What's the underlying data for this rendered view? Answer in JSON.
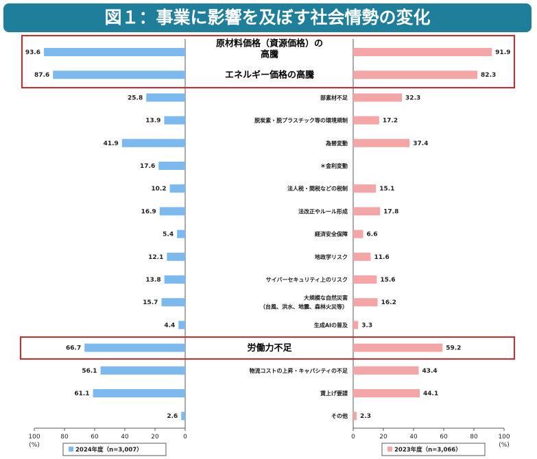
{
  "title": "図１：事業に影響を及ぼす社会情勢の変化",
  "chart_data": {
    "type": "bar",
    "orientation": "horizontal-butterfly",
    "categories": [
      {
        "label": "原材料価格（資源価格）の\n高騰",
        "emphasis": true
      },
      {
        "label": "エネルギー価格の高騰",
        "emphasis": true
      },
      {
        "label": "部素材不足",
        "emphasis": false
      },
      {
        "label": "脱炭素・脱プラスチック等の環境規制",
        "emphasis": false
      },
      {
        "label": "為替変動",
        "emphasis": false
      },
      {
        "label": "＊金利変動",
        "emphasis": false
      },
      {
        "label": "法人税・関税などの税制",
        "emphasis": false
      },
      {
        "label": "法改正やルール形成",
        "emphasis": false
      },
      {
        "label": "経済安全保障",
        "emphasis": false
      },
      {
        "label": "地政学リスク",
        "emphasis": false
      },
      {
        "label": "サイバーセキュリティ上のリスク",
        "emphasis": false
      },
      {
        "label": "大規模な自然災害\n（台風、洪水、地震、森林火災等）",
        "emphasis": false
      },
      {
        "label": "生成AIの普及",
        "emphasis": false
      },
      {
        "label": "労働力不足",
        "emphasis": true
      },
      {
        "label": "物流コストの上昇・キャパシティの不足",
        "emphasis": false
      },
      {
        "label": "賃上げ要請",
        "emphasis": false
      },
      {
        "label": "その他",
        "emphasis": false
      }
    ],
    "series": [
      {
        "name": "2024年度（n=3,007）",
        "color": "#7cb9ee",
        "side": "left",
        "values": [
          93.6,
          87.6,
          25.8,
          13.9,
          41.9,
          17.6,
          10.2,
          16.9,
          5.4,
          12.1,
          13.8,
          15.7,
          4.4,
          66.7,
          56.1,
          61.1,
          2.6
        ]
      },
      {
        "name": "2023年度（n=3,066）",
        "color": "#f4a6a6",
        "side": "right",
        "values": [
          91.9,
          82.3,
          32.3,
          17.2,
          37.4,
          null,
          15.1,
          17.8,
          6.6,
          11.6,
          15.6,
          16.2,
          3.3,
          59.2,
          43.4,
          44.1,
          2.3
        ]
      }
    ],
    "xlim": [
      0,
      100
    ],
    "ticks": [
      0,
      20,
      40,
      60,
      80,
      100
    ],
    "unit_label": "(%)",
    "highlight_color": "#d9252a"
  }
}
